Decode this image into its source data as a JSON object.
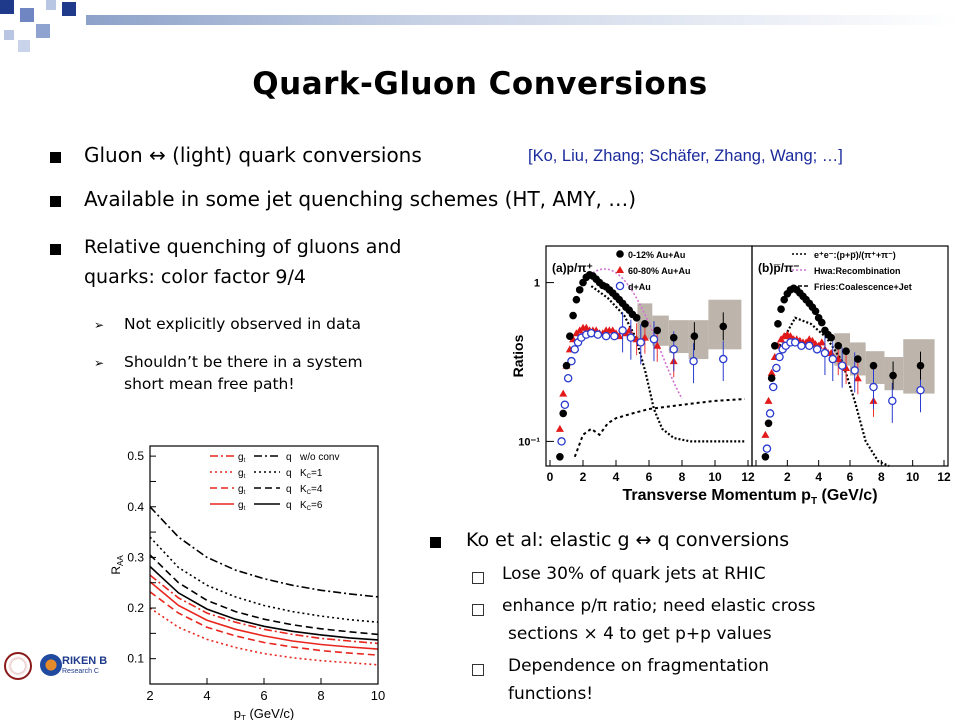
{
  "slide": {
    "title": "Quark-Gluon Conversions",
    "bullets": [
      "Gluon ↔ (light) quark conversions",
      "Available in some jet quenching schemes (HT, AMY, …)",
      "Relative quenching of gluons and",
      "quarks: color factor 9/4"
    ],
    "citation": "[Ko, Liu, Zhang; Schäfer, Zhang, Wang; …]",
    "sub_bullets_left": [
      "Not explicitly observed in data",
      "Shouldn’t be there in a system",
      "short mean free path!"
    ],
    "ko_bullet": "Ko et al: elastic g ↔ q conversions",
    "ko_sub": [
      " Lose 30% of quark jets at RHIC",
      " enhance p/π ratio; need elastic cross",
      "sections × 4 to get p+p values",
      "Dependence on fragmentation",
      "functions!"
    ],
    "logo_text": "RIKEN B",
    "logo_sub": "Research C"
  },
  "chart_data": [
    {
      "type": "scatter",
      "panels": [
        "(a)p/π⁺",
        "(b)p̅/π⁻"
      ],
      "xlabel": "Transverse Momentum p",
      "xlabel_sub": "T",
      "xlabel_unit": " (GeV/c)",
      "ylabel": "Ratios",
      "x_ticks": [
        "0",
        "2",
        "4",
        "6",
        "8",
        "10",
        "12"
      ],
      "y_ticks": [
        "1",
        "10⁻¹"
      ],
      "ylim": [
        0.07,
        1.7
      ],
      "yscale": "log",
      "legend_a": [
        "0-12% Au+Au",
        "60-80% Au+Au",
        "d+Au"
      ],
      "legend_b": [
        "e⁺e⁻:(p+p̅)/(π⁺+π⁻)",
        "Hwa:Recombination",
        "Fries:Coalescence+Jet"
      ],
      "series_a": [
        {
          "name": "0-12% Au+Au",
          "x": [
            0.6,
            0.8,
            1.0,
            1.2,
            1.4,
            1.6,
            1.8,
            2.0,
            2.2,
            2.4,
            2.6,
            2.8,
            3.0,
            3.2,
            3.4,
            3.6,
            3.8,
            4.0,
            4.2,
            4.4,
            4.6,
            4.8,
            5.0,
            5.25,
            5.75,
            6.5,
            7.5,
            8.75,
            10.5
          ],
          "y": [
            0.08,
            0.15,
            0.3,
            0.46,
            0.62,
            0.78,
            0.9,
            1.0,
            1.08,
            1.12,
            1.1,
            1.05,
            1.0,
            0.96,
            0.94,
            0.9,
            0.86,
            0.82,
            0.78,
            0.74,
            0.7,
            0.67,
            0.63,
            0.6,
            0.55,
            0.5,
            0.45,
            0.46,
            0.53
          ]
        },
        {
          "name": "60-80% Au+Au",
          "x": [
            0.6,
            0.8,
            1.0,
            1.2,
            1.4,
            1.6,
            1.8,
            2.0,
            2.2,
            2.4,
            2.6,
            2.8,
            3.0,
            3.2,
            3.4,
            3.6,
            3.8,
            4.0,
            4.2,
            4.4,
            4.6,
            4.8,
            5.25,
            5.75,
            6.5,
            7.5
          ],
          "y": [
            0.12,
            0.2,
            0.3,
            0.38,
            0.44,
            0.48,
            0.5,
            0.52,
            0.52,
            0.5,
            0.5,
            0.5,
            0.48,
            0.48,
            0.5,
            0.5,
            0.5,
            0.48,
            0.46,
            0.5,
            0.48,
            0.5,
            0.44,
            0.45,
            0.4,
            0.32
          ]
        },
        {
          "name": "d+Au",
          "x": [
            0.7,
            0.9,
            1.1,
            1.3,
            1.5,
            1.7,
            1.9,
            2.2,
            2.5,
            2.9,
            3.4,
            3.9,
            4.4,
            4.9,
            5.5,
            6.3,
            7.5,
            8.7,
            10.5
          ],
          "y": [
            0.1,
            0.17,
            0.25,
            0.32,
            0.38,
            0.42,
            0.45,
            0.47,
            0.48,
            0.47,
            0.46,
            0.46,
            0.5,
            0.45,
            0.42,
            0.44,
            0.38,
            0.32,
            0.33
          ]
        }
      ],
      "series_b": [
        {
          "name": "0-12% Au+Au",
          "x": [
            0.6,
            0.8,
            1.0,
            1.2,
            1.4,
            1.6,
            1.8,
            2.0,
            2.2,
            2.4,
            2.6,
            2.8,
            3.0,
            3.2,
            3.4,
            3.6,
            3.8,
            4.0,
            4.2,
            4.4,
            4.6,
            4.8,
            5.25,
            5.75,
            6.5,
            7.5,
            8.75,
            10.5
          ],
          "y": [
            0.08,
            0.13,
            0.25,
            0.4,
            0.55,
            0.68,
            0.78,
            0.85,
            0.9,
            0.92,
            0.9,
            0.86,
            0.82,
            0.78,
            0.74,
            0.7,
            0.66,
            0.6,
            0.56,
            0.5,
            0.47,
            0.45,
            0.4,
            0.37,
            0.33,
            0.3,
            0.26,
            0.3
          ]
        },
        {
          "name": "60-80% Au+Au",
          "x": [
            0.6,
            0.8,
            1.0,
            1.2,
            1.4,
            1.6,
            1.8,
            2.0,
            2.2,
            2.4,
            2.6,
            2.8,
            3.0,
            3.2,
            3.4,
            3.6,
            3.8,
            4.0,
            4.2,
            4.4,
            4.6,
            4.8,
            5.25,
            5.75,
            6.5,
            7.5
          ],
          "y": [
            0.11,
            0.18,
            0.27,
            0.34,
            0.4,
            0.44,
            0.46,
            0.47,
            0.46,
            0.44,
            0.44,
            0.43,
            0.42,
            0.42,
            0.44,
            0.43,
            0.41,
            0.4,
            0.42,
            0.38,
            0.36,
            0.36,
            0.33,
            0.29,
            0.25,
            0.18
          ]
        },
        {
          "name": "d+Au",
          "x": [
            0.7,
            0.9,
            1.1,
            1.3,
            1.5,
            1.7,
            1.9,
            2.2,
            2.5,
            2.9,
            3.4,
            3.9,
            4.4,
            4.9,
            5.5,
            6.3,
            7.5,
            8.7,
            10.5
          ],
          "y": [
            0.09,
            0.15,
            0.22,
            0.29,
            0.34,
            0.38,
            0.4,
            0.42,
            0.42,
            0.4,
            0.4,
            0.38,
            0.36,
            0.33,
            0.3,
            0.28,
            0.22,
            0.18,
            0.21
          ]
        }
      ]
    },
    {
      "type": "line",
      "ylabel": "R",
      "ylabel_sub": "AA",
      "xlabel": "p",
      "xlabel_sub": "T",
      "xlabel_unit": " (GeV/c)",
      "x_ticks": [
        "2",
        "4",
        "6",
        "8",
        "10"
      ],
      "y_ticks": [
        "0.1",
        "0.15",
        "0.2",
        "0.25",
        "0.3",
        "0.35",
        "0.4",
        "0.45",
        "0.5"
      ],
      "xlim": [
        2,
        10
      ],
      "ylim": [
        0.05,
        0.52
      ],
      "legend": [
        {
          "g": "g",
          "q": "q",
          "label": "w/o conv"
        },
        {
          "g": "g",
          "q": "q",
          "label": "K",
          "sub": "C",
          "val": "=1"
        },
        {
          "g": "g",
          "q": "q",
          "label": "K",
          "sub": "C",
          "val": "=4"
        },
        {
          "g": "g",
          "q": "q",
          "label": "K",
          "sub": "C",
          "val": "=6"
        }
      ],
      "series": [
        {
          "style": "red-dashdot",
          "x": [
            2,
            3,
            4,
            5,
            6,
            7,
            8,
            9,
            10
          ],
          "y": [
            0.265,
            0.22,
            0.19,
            0.172,
            0.158,
            0.148,
            0.14,
            0.135,
            0.13
          ]
        },
        {
          "style": "black-dashdot",
          "x": [
            2,
            3,
            4,
            5,
            6,
            7,
            8,
            9,
            10
          ],
          "y": [
            0.4,
            0.34,
            0.3,
            0.275,
            0.258,
            0.245,
            0.235,
            0.228,
            0.222
          ]
        },
        {
          "style": "red-dot",
          "x": [
            2,
            3,
            4,
            5,
            6,
            7,
            8,
            9,
            10
          ],
          "y": [
            0.2,
            0.162,
            0.138,
            0.122,
            0.11,
            0.102,
            0.096,
            0.092,
            0.088
          ]
        },
        {
          "style": "black-dot",
          "x": [
            2,
            3,
            4,
            5,
            6,
            7,
            8,
            9,
            10
          ],
          "y": [
            0.34,
            0.28,
            0.245,
            0.222,
            0.205,
            0.193,
            0.184,
            0.177,
            0.172
          ]
        },
        {
          "style": "red-dash",
          "x": [
            2,
            3,
            4,
            5,
            6,
            7,
            8,
            9,
            10
          ],
          "y": [
            0.232,
            0.19,
            0.162,
            0.145,
            0.132,
            0.123,
            0.116,
            0.111,
            0.107
          ]
        },
        {
          "style": "black-dash",
          "x": [
            2,
            3,
            4,
            5,
            6,
            7,
            8,
            9,
            10
          ],
          "y": [
            0.305,
            0.25,
            0.215,
            0.193,
            0.178,
            0.167,
            0.159,
            0.153,
            0.148
          ]
        },
        {
          "style": "red-solid",
          "x": [
            2,
            3,
            4,
            5,
            6,
            7,
            8,
            9,
            10
          ],
          "y": [
            0.252,
            0.205,
            0.176,
            0.158,
            0.145,
            0.135,
            0.128,
            0.123,
            0.119
          ]
        },
        {
          "style": "black-solid",
          "x": [
            2,
            3,
            4,
            5,
            6,
            7,
            8,
            9,
            10
          ],
          "y": [
            0.282,
            0.23,
            0.198,
            0.178,
            0.164,
            0.154,
            0.147,
            0.141,
            0.137
          ]
        }
      ]
    }
  ]
}
